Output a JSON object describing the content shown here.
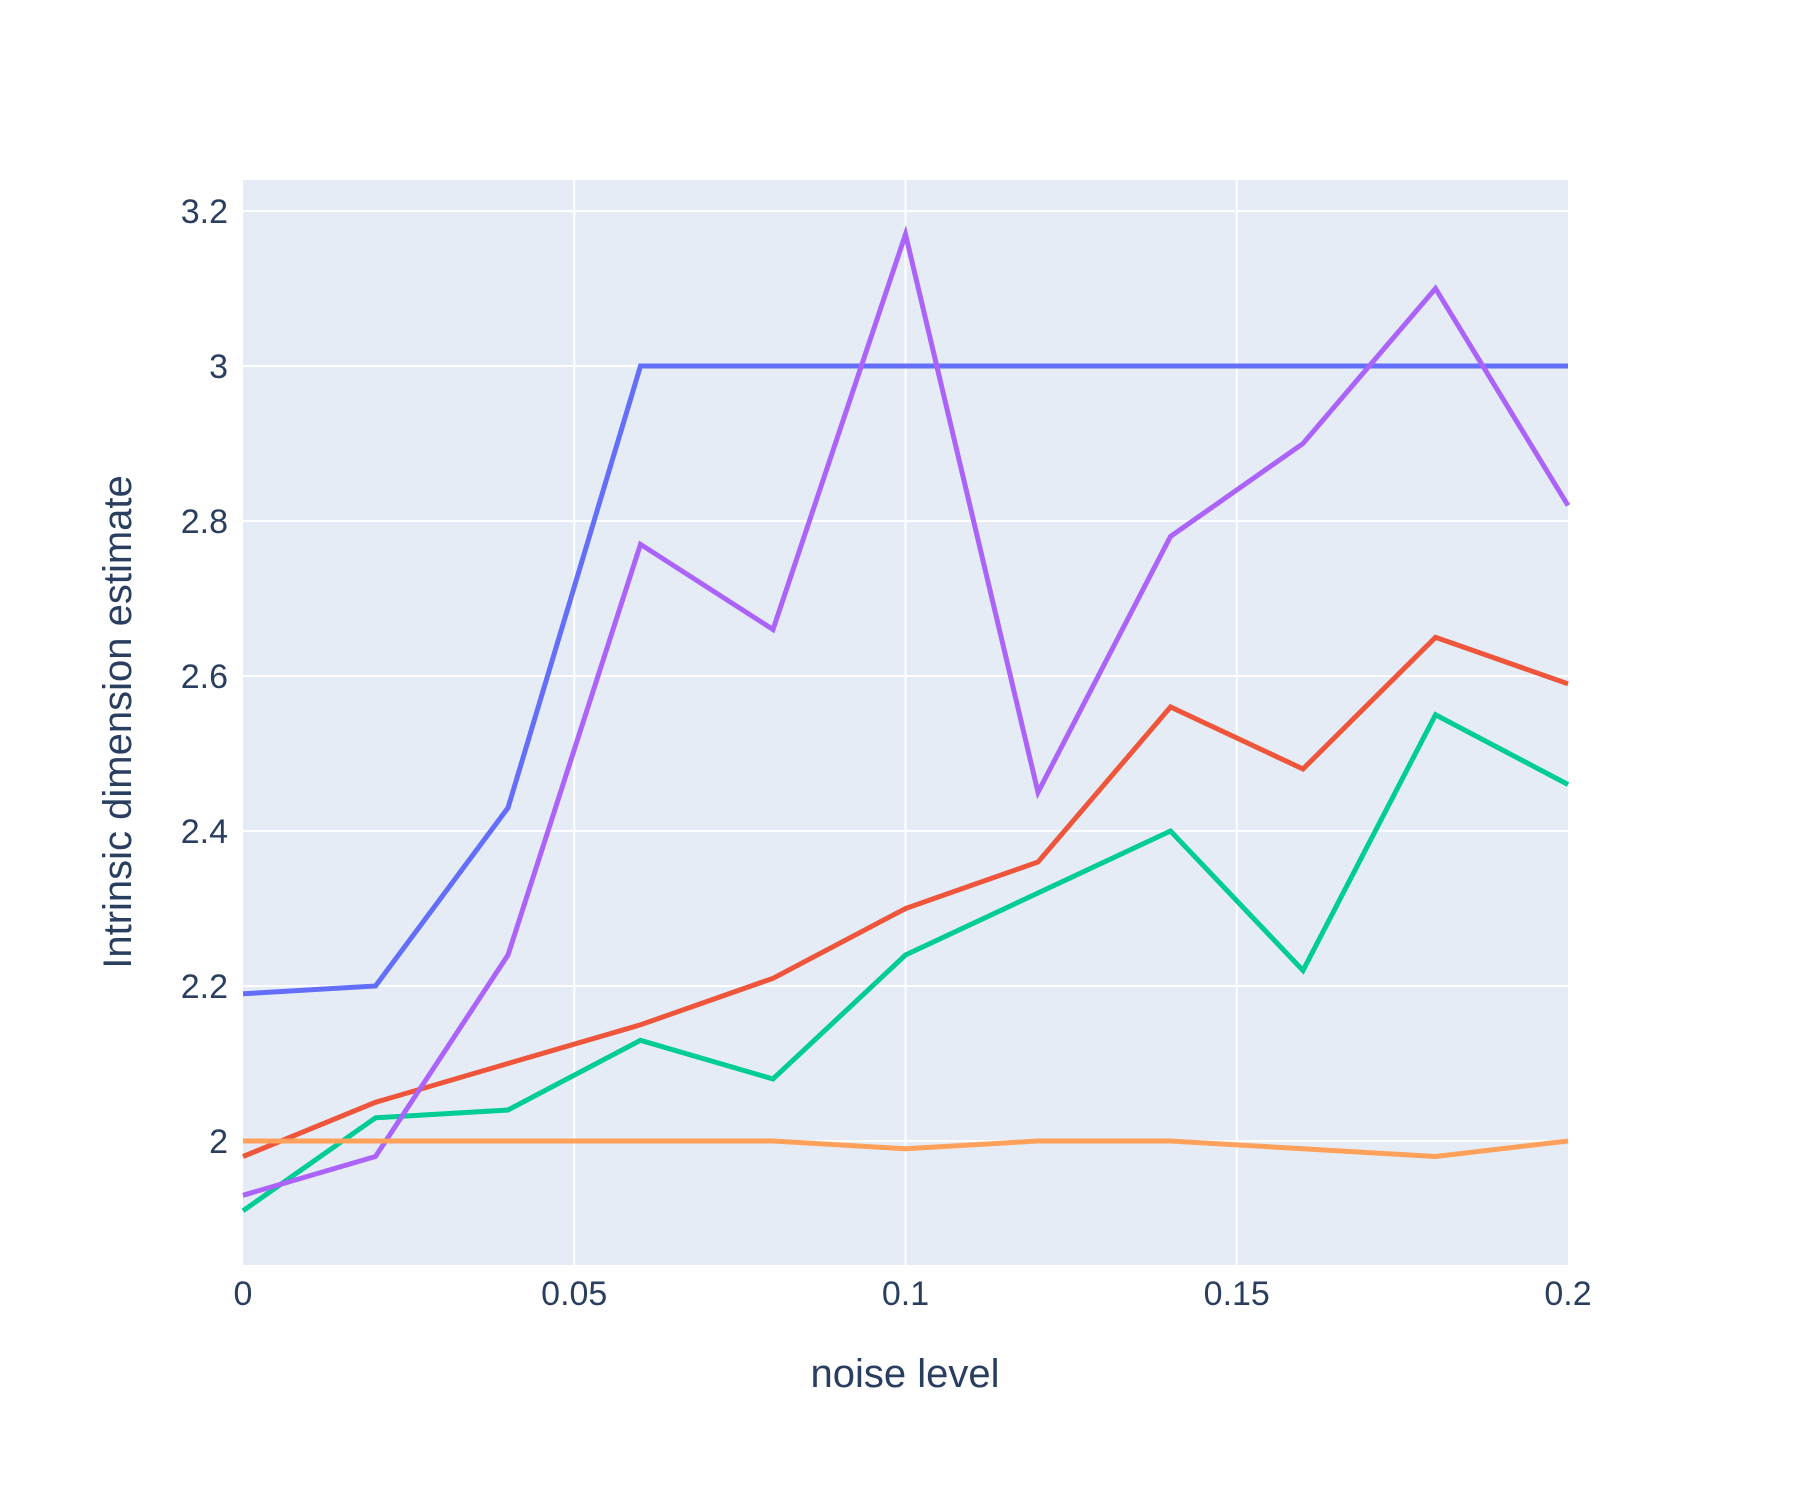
{
  "chart_data": {
    "type": "line",
    "title": "",
    "xlabel": "noise level",
    "ylabel": "Intrinsic dimension estimate",
    "xlim": [
      0,
      0.2
    ],
    "ylim": [
      1.84,
      3.24
    ],
    "grid": true,
    "legend": "none",
    "x_ticks": [
      {
        "value": 0,
        "label": "0"
      },
      {
        "value": 0.05,
        "label": "0.05"
      },
      {
        "value": 0.1,
        "label": "0.1"
      },
      {
        "value": 0.15,
        "label": "0.15"
      },
      {
        "value": 0.2,
        "label": "0.2"
      }
    ],
    "y_ticks": [
      {
        "value": 2.0,
        "label": "2"
      },
      {
        "value": 2.2,
        "label": "2.2"
      },
      {
        "value": 2.4,
        "label": "2.4"
      },
      {
        "value": 2.6,
        "label": "2.6"
      },
      {
        "value": 2.8,
        "label": "2.8"
      },
      {
        "value": 3.0,
        "label": "3"
      },
      {
        "value": 3.2,
        "label": "3.2"
      }
    ],
    "x": [
      0,
      0.02,
      0.04,
      0.06,
      0.08,
      0.1,
      0.12,
      0.14,
      0.16,
      0.18,
      0.2
    ],
    "series": [
      {
        "color": "#636efa",
        "values": [
          2.19,
          2.2,
          2.43,
          3.0,
          3.0,
          3.0,
          3.0,
          3.0,
          3.0,
          3.0,
          3.0
        ]
      },
      {
        "color": "#ef553b",
        "values": [
          1.98,
          2.05,
          2.1,
          2.15,
          2.21,
          2.3,
          2.36,
          2.56,
          2.48,
          2.65,
          2.59
        ]
      },
      {
        "color": "#00cc96",
        "values": [
          1.91,
          2.03,
          2.04,
          2.13,
          2.08,
          2.24,
          2.32,
          2.4,
          2.22,
          2.55,
          2.46
        ]
      },
      {
        "color": "#ab63fa",
        "values": [
          1.93,
          1.98,
          2.24,
          2.77,
          2.66,
          3.17,
          2.45,
          2.78,
          2.9,
          3.1,
          2.82
        ]
      },
      {
        "color": "#ffa15a",
        "values": [
          2.0,
          2.0,
          2.0,
          2.0,
          2.0,
          1.99,
          2.0,
          2.0,
          1.99,
          1.98,
          2.0
        ]
      }
    ]
  },
  "colors": {
    "plot_background": "#e5ecf6",
    "grid": "#ffffff",
    "text": "#2a3f5f"
  }
}
